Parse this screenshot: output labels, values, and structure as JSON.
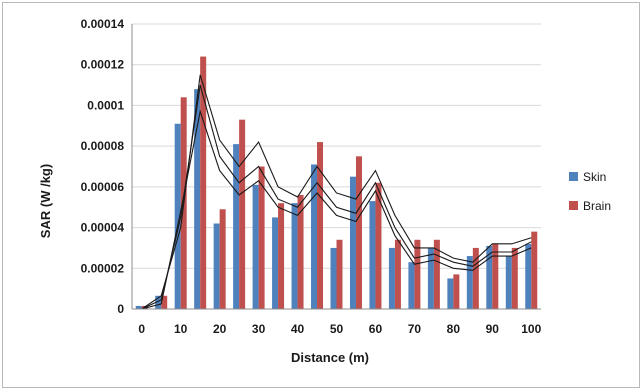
{
  "chart_data": {
    "type": "bar",
    "title": "",
    "xlabel": "Distance  (m)",
    "ylabel": "SAR (W /kg)",
    "ylim": [
      0,
      0.00014
    ],
    "y_ticks": [
      "0",
      "0.00002",
      "0.00004",
      "0.00006",
      "0.00008",
      "0.0001",
      "0.00012",
      "0.00014"
    ],
    "categories": [
      "0",
      "5",
      "10",
      "15",
      "20",
      "25",
      "30",
      "35",
      "40",
      "45",
      "50",
      "55",
      "60",
      "65",
      "70",
      "75",
      "80",
      "85",
      "90",
      "95",
      "100"
    ],
    "x_tick_labels": [
      "0",
      "10",
      "20",
      "30",
      "40",
      "50",
      "60",
      "70",
      "80",
      "90",
      "100"
    ],
    "series": [
      {
        "name": "Skin",
        "color": "#4f81bd",
        "values": [
          1.5e-06,
          6.5e-06,
          9.1e-05,
          0.000108,
          4.2e-05,
          8.1e-05,
          6.1e-05,
          4.5e-05,
          5.2e-05,
          7.1e-05,
          3e-05,
          6.5e-05,
          5.3e-05,
          3e-05,
          2.3e-05,
          3e-05,
          1.5e-05,
          2.6e-05,
          3.1e-05,
          2.6e-05,
          3.2e-05
        ]
      },
      {
        "name": "Brain",
        "color": "#c0504d",
        "values": [
          1.5e-06,
          6.5e-06,
          0.000104,
          0.000124,
          4.9e-05,
          9.3e-05,
          7e-05,
          5.2e-05,
          5.6e-05,
          8.2e-05,
          3.4e-05,
          7.5e-05,
          6.2e-05,
          3.4e-05,
          3.4e-05,
          3.4e-05,
          1.7e-05,
          3e-05,
          3.2e-05,
          3e-05,
          3.8e-05
        ]
      }
    ],
    "trend_lines": [
      [
        0.0,
        6.5e-06,
        4e-05,
        0.000115,
        8.3e-05,
        7e-05,
        8.2e-05,
        6e-05,
        5.5e-05,
        7e-05,
        5.7e-05,
        5.4e-05,
        6.8e-05,
        4.6e-05,
        3e-05,
        3e-05,
        2.5e-05,
        2.3e-05,
        3.2e-05,
        3.2e-05,
        3.5e-05
      ],
      [
        0.0,
        4.5e-06,
        4.5e-05,
        0.00011,
        7.5e-05,
        6.2e-05,
        7e-05,
        5.4e-05,
        5e-05,
        6.2e-05,
        5e-05,
        4.7e-05,
        6.2e-05,
        4e-05,
        2.5e-05,
        2.7e-05,
        2.3e-05,
        2.1e-05,
        2.8e-05,
        2.8e-05,
        3.3e-05
      ],
      [
        0.0,
        2.5e-06,
        4.8e-05,
        9.7e-05,
        6.8e-05,
        5.6e-05,
        6.3e-05,
        5e-05,
        4.6e-05,
        5.7e-05,
        4.6e-05,
        4.3e-05,
        5.8e-05,
        3.6e-05,
        2.2e-05,
        2.4e-05,
        2e-05,
        1.9e-05,
        2.6e-05,
        2.6e-05,
        3e-05
      ]
    ],
    "trend_color": "#1a1a1a",
    "grid": true,
    "legend_position": "right"
  }
}
